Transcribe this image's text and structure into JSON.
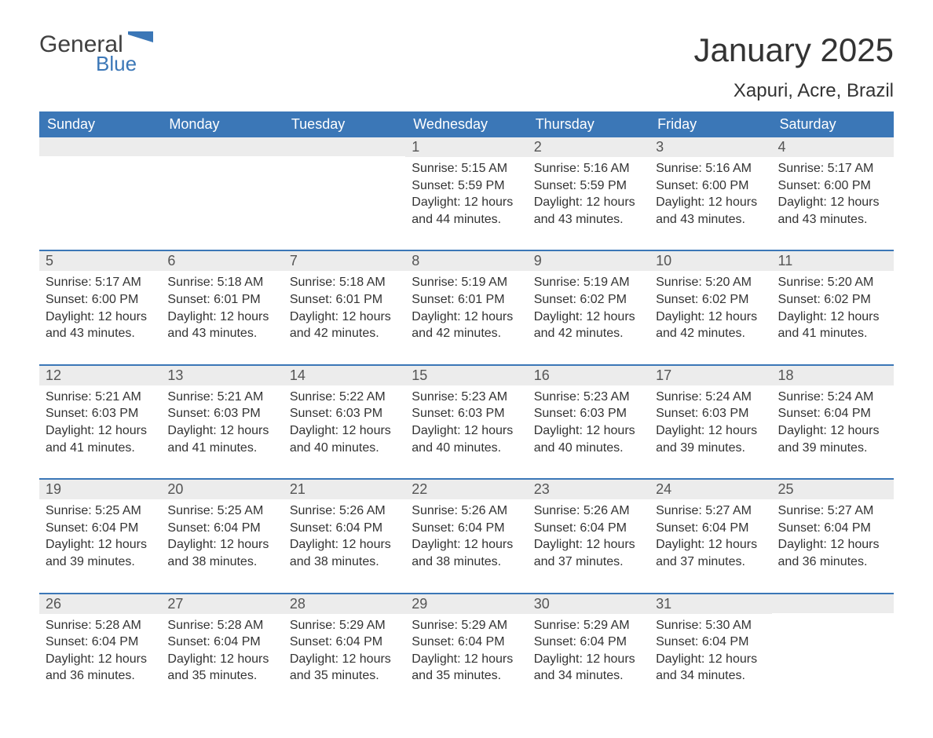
{
  "logo": {
    "main": "General",
    "sub": "Blue",
    "main_color": "#404040",
    "sub_color": "#3b77b7"
  },
  "title": "January 2025",
  "location": "Xapuri, Acre, Brazil",
  "header_bg": "#3b77b7",
  "header_fg": "#ffffff",
  "daynum_bg": "#ececec",
  "border_color": "#3b77b7",
  "text_color": "#333333",
  "background_color": "#ffffff",
  "title_fontsize": 42,
  "location_fontsize": 24,
  "header_fontsize": 18,
  "body_fontsize": 16,
  "columns": [
    "Sunday",
    "Monday",
    "Tuesday",
    "Wednesday",
    "Thursday",
    "Friday",
    "Saturday"
  ],
  "weeks": [
    [
      {
        "n": "",
        "sr": "",
        "ss": "",
        "dl": ""
      },
      {
        "n": "",
        "sr": "",
        "ss": "",
        "dl": ""
      },
      {
        "n": "",
        "sr": "",
        "ss": "",
        "dl": ""
      },
      {
        "n": "1",
        "sr": "Sunrise: 5:15 AM",
        "ss": "Sunset: 5:59 PM",
        "dl": "Daylight: 12 hours and 44 minutes."
      },
      {
        "n": "2",
        "sr": "Sunrise: 5:16 AM",
        "ss": "Sunset: 5:59 PM",
        "dl": "Daylight: 12 hours and 43 minutes."
      },
      {
        "n": "3",
        "sr": "Sunrise: 5:16 AM",
        "ss": "Sunset: 6:00 PM",
        "dl": "Daylight: 12 hours and 43 minutes."
      },
      {
        "n": "4",
        "sr": "Sunrise: 5:17 AM",
        "ss": "Sunset: 6:00 PM",
        "dl": "Daylight: 12 hours and 43 minutes."
      }
    ],
    [
      {
        "n": "5",
        "sr": "Sunrise: 5:17 AM",
        "ss": "Sunset: 6:00 PM",
        "dl": "Daylight: 12 hours and 43 minutes."
      },
      {
        "n": "6",
        "sr": "Sunrise: 5:18 AM",
        "ss": "Sunset: 6:01 PM",
        "dl": "Daylight: 12 hours and 43 minutes."
      },
      {
        "n": "7",
        "sr": "Sunrise: 5:18 AM",
        "ss": "Sunset: 6:01 PM",
        "dl": "Daylight: 12 hours and 42 minutes."
      },
      {
        "n": "8",
        "sr": "Sunrise: 5:19 AM",
        "ss": "Sunset: 6:01 PM",
        "dl": "Daylight: 12 hours and 42 minutes."
      },
      {
        "n": "9",
        "sr": "Sunrise: 5:19 AM",
        "ss": "Sunset: 6:02 PM",
        "dl": "Daylight: 12 hours and 42 minutes."
      },
      {
        "n": "10",
        "sr": "Sunrise: 5:20 AM",
        "ss": "Sunset: 6:02 PM",
        "dl": "Daylight: 12 hours and 42 minutes."
      },
      {
        "n": "11",
        "sr": "Sunrise: 5:20 AM",
        "ss": "Sunset: 6:02 PM",
        "dl": "Daylight: 12 hours and 41 minutes."
      }
    ],
    [
      {
        "n": "12",
        "sr": "Sunrise: 5:21 AM",
        "ss": "Sunset: 6:03 PM",
        "dl": "Daylight: 12 hours and 41 minutes."
      },
      {
        "n": "13",
        "sr": "Sunrise: 5:21 AM",
        "ss": "Sunset: 6:03 PM",
        "dl": "Daylight: 12 hours and 41 minutes."
      },
      {
        "n": "14",
        "sr": "Sunrise: 5:22 AM",
        "ss": "Sunset: 6:03 PM",
        "dl": "Daylight: 12 hours and 40 minutes."
      },
      {
        "n": "15",
        "sr": "Sunrise: 5:23 AM",
        "ss": "Sunset: 6:03 PM",
        "dl": "Daylight: 12 hours and 40 minutes."
      },
      {
        "n": "16",
        "sr": "Sunrise: 5:23 AM",
        "ss": "Sunset: 6:03 PM",
        "dl": "Daylight: 12 hours and 40 minutes."
      },
      {
        "n": "17",
        "sr": "Sunrise: 5:24 AM",
        "ss": "Sunset: 6:03 PM",
        "dl": "Daylight: 12 hours and 39 minutes."
      },
      {
        "n": "18",
        "sr": "Sunrise: 5:24 AM",
        "ss": "Sunset: 6:04 PM",
        "dl": "Daylight: 12 hours and 39 minutes."
      }
    ],
    [
      {
        "n": "19",
        "sr": "Sunrise: 5:25 AM",
        "ss": "Sunset: 6:04 PM",
        "dl": "Daylight: 12 hours and 39 minutes."
      },
      {
        "n": "20",
        "sr": "Sunrise: 5:25 AM",
        "ss": "Sunset: 6:04 PM",
        "dl": "Daylight: 12 hours and 38 minutes."
      },
      {
        "n": "21",
        "sr": "Sunrise: 5:26 AM",
        "ss": "Sunset: 6:04 PM",
        "dl": "Daylight: 12 hours and 38 minutes."
      },
      {
        "n": "22",
        "sr": "Sunrise: 5:26 AM",
        "ss": "Sunset: 6:04 PM",
        "dl": "Daylight: 12 hours and 38 minutes."
      },
      {
        "n": "23",
        "sr": "Sunrise: 5:26 AM",
        "ss": "Sunset: 6:04 PM",
        "dl": "Daylight: 12 hours and 37 minutes."
      },
      {
        "n": "24",
        "sr": "Sunrise: 5:27 AM",
        "ss": "Sunset: 6:04 PM",
        "dl": "Daylight: 12 hours and 37 minutes."
      },
      {
        "n": "25",
        "sr": "Sunrise: 5:27 AM",
        "ss": "Sunset: 6:04 PM",
        "dl": "Daylight: 12 hours and 36 minutes."
      }
    ],
    [
      {
        "n": "26",
        "sr": "Sunrise: 5:28 AM",
        "ss": "Sunset: 6:04 PM",
        "dl": "Daylight: 12 hours and 36 minutes."
      },
      {
        "n": "27",
        "sr": "Sunrise: 5:28 AM",
        "ss": "Sunset: 6:04 PM",
        "dl": "Daylight: 12 hours and 35 minutes."
      },
      {
        "n": "28",
        "sr": "Sunrise: 5:29 AM",
        "ss": "Sunset: 6:04 PM",
        "dl": "Daylight: 12 hours and 35 minutes."
      },
      {
        "n": "29",
        "sr": "Sunrise: 5:29 AM",
        "ss": "Sunset: 6:04 PM",
        "dl": "Daylight: 12 hours and 35 minutes."
      },
      {
        "n": "30",
        "sr": "Sunrise: 5:29 AM",
        "ss": "Sunset: 6:04 PM",
        "dl": "Daylight: 12 hours and 34 minutes."
      },
      {
        "n": "31",
        "sr": "Sunrise: 5:30 AM",
        "ss": "Sunset: 6:04 PM",
        "dl": "Daylight: 12 hours and 34 minutes."
      },
      {
        "n": "",
        "sr": "",
        "ss": "",
        "dl": ""
      }
    ]
  ]
}
